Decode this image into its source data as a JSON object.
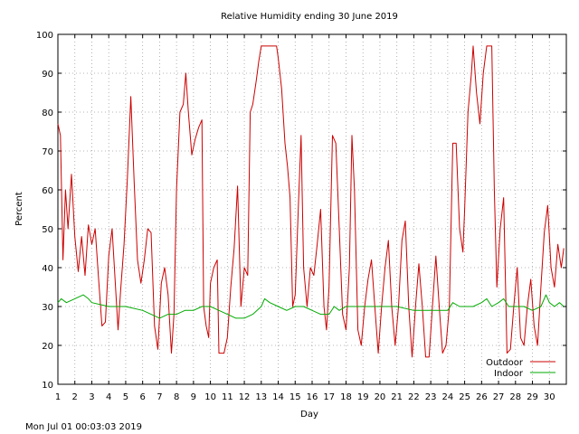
{
  "chart_data": {
    "type": "line",
    "title": "Relative Humidity ending 30 June 2019",
    "xlabel": "Day",
    "ylabel": "Percent",
    "footer": "Mon Jul 01 00:03:03 2019",
    "xlim": [
      1,
      31
    ],
    "ylim": [
      10,
      100
    ],
    "grid": true,
    "legend_position": "bottom-right",
    "x_ticks": [
      1,
      2,
      3,
      4,
      5,
      6,
      7,
      8,
      9,
      10,
      11,
      12,
      13,
      14,
      15,
      16,
      17,
      18,
      19,
      20,
      21,
      22,
      23,
      24,
      25,
      26,
      27,
      28,
      29,
      30
    ],
    "x_tick_labels": [
      "1",
      "2",
      "3",
      "4",
      "5",
      "6",
      "7",
      "8",
      "9",
      "10",
      "11",
      "12",
      "13",
      "14",
      "15",
      "16",
      "17",
      "18",
      "19",
      "20",
      "21",
      "22",
      "23",
      "24",
      "25",
      "26",
      "27",
      "28",
      "29",
      "30"
    ],
    "y_ticks": [
      10,
      20,
      30,
      40,
      50,
      60,
      70,
      80,
      90,
      100
    ],
    "y_tick_labels": [
      "10",
      "20",
      "30",
      "40",
      "50",
      "60",
      "70",
      "80",
      "90",
      "100"
    ],
    "series": [
      {
        "name": "Outdoor",
        "color": "#cc0000",
        "points": [
          [
            1.0,
            77
          ],
          [
            1.15,
            74
          ],
          [
            1.3,
            42
          ],
          [
            1.45,
            60
          ],
          [
            1.6,
            50
          ],
          [
            1.8,
            64
          ],
          [
            2.0,
            48
          ],
          [
            2.2,
            39
          ],
          [
            2.4,
            48
          ],
          [
            2.6,
            38
          ],
          [
            2.8,
            51
          ],
          [
            3.0,
            46
          ],
          [
            3.2,
            50
          ],
          [
            3.4,
            37
          ],
          [
            3.6,
            25
          ],
          [
            3.8,
            26
          ],
          [
            4.0,
            43
          ],
          [
            4.2,
            50
          ],
          [
            4.4,
            35
          ],
          [
            4.55,
            24
          ],
          [
            4.7,
            34
          ],
          [
            4.9,
            46
          ],
          [
            5.1,
            63
          ],
          [
            5.3,
            84
          ],
          [
            5.5,
            62
          ],
          [
            5.7,
            42
          ],
          [
            5.9,
            36
          ],
          [
            6.1,
            42
          ],
          [
            6.3,
            50
          ],
          [
            6.5,
            49
          ],
          [
            6.7,
            25
          ],
          [
            6.9,
            19
          ],
          [
            7.1,
            36
          ],
          [
            7.3,
            40
          ],
          [
            7.5,
            33
          ],
          [
            7.7,
            18
          ],
          [
            7.85,
            28
          ],
          [
            8.0,
            60
          ],
          [
            8.2,
            80
          ],
          [
            8.4,
            82
          ],
          [
            8.55,
            90
          ],
          [
            8.7,
            80
          ],
          [
            8.9,
            69
          ],
          [
            9.1,
            73
          ],
          [
            9.3,
            76
          ],
          [
            9.5,
            78
          ],
          [
            9.6,
            30
          ],
          [
            9.75,
            25
          ],
          [
            9.9,
            22
          ],
          [
            10.0,
            36
          ],
          [
            10.2,
            40
          ],
          [
            10.4,
            42
          ],
          [
            10.5,
            18
          ],
          [
            10.8,
            18
          ],
          [
            11.0,
            22
          ],
          [
            11.2,
            35
          ],
          [
            11.4,
            45
          ],
          [
            11.6,
            61
          ],
          [
            11.8,
            30
          ],
          [
            12.0,
            40
          ],
          [
            12.2,
            38
          ],
          [
            12.35,
            80
          ],
          [
            12.5,
            82
          ],
          [
            12.7,
            88
          ],
          [
            12.85,
            93
          ],
          [
            13.0,
            97
          ],
          [
            13.5,
            97
          ],
          [
            13.9,
            97
          ],
          [
            14.0,
            94
          ],
          [
            14.2,
            86
          ],
          [
            14.4,
            72
          ],
          [
            14.55,
            66
          ],
          [
            14.7,
            58
          ],
          [
            14.85,
            30
          ],
          [
            15.0,
            33
          ],
          [
            15.2,
            57
          ],
          [
            15.35,
            74
          ],
          [
            15.5,
            40
          ],
          [
            15.7,
            30
          ],
          [
            15.9,
            40
          ],
          [
            16.1,
            38
          ],
          [
            16.3,
            46
          ],
          [
            16.5,
            55
          ],
          [
            16.7,
            30
          ],
          [
            16.85,
            24
          ],
          [
            17.0,
            35
          ],
          [
            17.2,
            74
          ],
          [
            17.4,
            72
          ],
          [
            17.6,
            50
          ],
          [
            17.8,
            28
          ],
          [
            18.0,
            24
          ],
          [
            18.2,
            40
          ],
          [
            18.35,
            74
          ],
          [
            18.5,
            60
          ],
          [
            18.7,
            24
          ],
          [
            18.9,
            20
          ],
          [
            19.1,
            30
          ],
          [
            19.3,
            37
          ],
          [
            19.5,
            42
          ],
          [
            19.7,
            30
          ],
          [
            19.9,
            18
          ],
          [
            20.1,
            30
          ],
          [
            20.3,
            40
          ],
          [
            20.5,
            47
          ],
          [
            20.7,
            30
          ],
          [
            20.9,
            20
          ],
          [
            21.1,
            30
          ],
          [
            21.3,
            47
          ],
          [
            21.5,
            52
          ],
          [
            21.7,
            30
          ],
          [
            21.9,
            17
          ],
          [
            22.1,
            30
          ],
          [
            22.3,
            41
          ],
          [
            22.5,
            30
          ],
          [
            22.7,
            17
          ],
          [
            22.9,
            17
          ],
          [
            23.1,
            30
          ],
          [
            23.3,
            43
          ],
          [
            23.5,
            30
          ],
          [
            23.7,
            18
          ],
          [
            23.9,
            20
          ],
          [
            24.1,
            30
          ],
          [
            24.3,
            72
          ],
          [
            24.5,
            72
          ],
          [
            24.7,
            50
          ],
          [
            24.9,
            44
          ],
          [
            25.0,
            55
          ],
          [
            25.2,
            80
          ],
          [
            25.4,
            90
          ],
          [
            25.5,
            97
          ],
          [
            25.7,
            85
          ],
          [
            25.9,
            77
          ],
          [
            26.1,
            90
          ],
          [
            26.3,
            97
          ],
          [
            26.6,
            97
          ],
          [
            26.75,
            60
          ],
          [
            26.9,
            35
          ],
          [
            27.1,
            50
          ],
          [
            27.3,
            58
          ],
          [
            27.5,
            18
          ],
          [
            27.7,
            19
          ],
          [
            27.9,
            30
          ],
          [
            28.1,
            40
          ],
          [
            28.3,
            22
          ],
          [
            28.5,
            20
          ],
          [
            28.7,
            30
          ],
          [
            28.9,
            37
          ],
          [
            29.1,
            25
          ],
          [
            29.3,
            20
          ],
          [
            29.5,
            35
          ],
          [
            29.7,
            49
          ],
          [
            29.9,
            56
          ],
          [
            30.1,
            40
          ],
          [
            30.3,
            35
          ],
          [
            30.5,
            46
          ],
          [
            30.7,
            40
          ],
          [
            30.85,
            45
          ]
        ]
      },
      {
        "name": "Indoor",
        "color": "#00aa00",
        "points": [
          [
            1.0,
            31
          ],
          [
            1.2,
            32
          ],
          [
            1.5,
            31
          ],
          [
            2.0,
            32
          ],
          [
            2.5,
            33
          ],
          [
            2.8,
            32
          ],
          [
            3.0,
            31
          ],
          [
            4.0,
            30
          ],
          [
            5.0,
            30
          ],
          [
            6.0,
            29
          ],
          [
            6.5,
            28
          ],
          [
            7.0,
            27
          ],
          [
            7.5,
            28
          ],
          [
            8.0,
            28
          ],
          [
            8.5,
            29
          ],
          [
            9.0,
            29
          ],
          [
            9.5,
            30
          ],
          [
            10.0,
            30
          ],
          [
            10.5,
            29
          ],
          [
            11.0,
            28
          ],
          [
            11.5,
            27
          ],
          [
            12.0,
            27
          ],
          [
            12.5,
            28
          ],
          [
            13.0,
            30
          ],
          [
            13.2,
            32
          ],
          [
            13.5,
            31
          ],
          [
            14.0,
            30
          ],
          [
            14.5,
            29
          ],
          [
            15.0,
            30
          ],
          [
            15.5,
            30
          ],
          [
            16.0,
            29
          ],
          [
            16.5,
            28
          ],
          [
            17.0,
            28
          ],
          [
            17.3,
            30
          ],
          [
            17.6,
            29
          ],
          [
            18.0,
            30
          ],
          [
            18.5,
            30
          ],
          [
            19.0,
            30
          ],
          [
            20.0,
            30
          ],
          [
            21.0,
            30
          ],
          [
            22.0,
            29
          ],
          [
            23.0,
            29
          ],
          [
            24.0,
            29
          ],
          [
            24.3,
            31
          ],
          [
            24.7,
            30
          ],
          [
            25.0,
            30
          ],
          [
            25.5,
            30
          ],
          [
            26.0,
            31
          ],
          [
            26.3,
            32
          ],
          [
            26.6,
            30
          ],
          [
            27.0,
            31
          ],
          [
            27.3,
            32
          ],
          [
            27.6,
            30
          ],
          [
            28.0,
            30
          ],
          [
            28.5,
            30
          ],
          [
            29.0,
            29
          ],
          [
            29.5,
            30
          ],
          [
            29.8,
            33
          ],
          [
            30.0,
            31
          ],
          [
            30.3,
            30
          ],
          [
            30.6,
            31
          ],
          [
            30.85,
            30
          ]
        ]
      }
    ]
  }
}
